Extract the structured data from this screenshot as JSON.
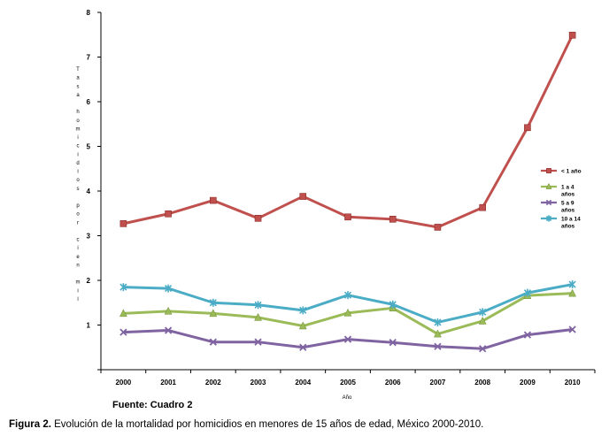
{
  "chart_data": {
    "type": "line",
    "xlabel": "Año",
    "ylabel": "Tasa homicidios por cien mil",
    "ylim": [
      0,
      8
    ],
    "yticks": [
      "1",
      "2",
      "3",
      "4",
      "5",
      "6",
      "7",
      "8"
    ],
    "x": [
      "2000",
      "2001",
      "2002",
      "2003",
      "2004",
      "2005",
      "2006",
      "2007",
      "2008",
      "2009",
      "2010"
    ],
    "grid": false,
    "legend_position": "right",
    "series": [
      {
        "name": "< 1 año",
        "color": "#C0504D",
        "marker": "square",
        "values": [
          3.27,
          3.49,
          3.79,
          3.39,
          3.88,
          3.42,
          3.37,
          3.19,
          3.63,
          5.42,
          7.49
        ]
      },
      {
        "name": "1 a 4 años",
        "color": "#9BBB59",
        "marker": "triangle",
        "values": [
          1.26,
          1.31,
          1.26,
          1.17,
          0.98,
          1.27,
          1.38,
          0.8,
          1.09,
          1.66,
          1.71
        ]
      },
      {
        "name": "5 a 9 años",
        "color": "#8064A2",
        "marker": "x",
        "values": [
          0.84,
          0.88,
          0.62,
          0.62,
          0.5,
          0.68,
          0.61,
          0.52,
          0.47,
          0.78,
          0.9
        ]
      },
      {
        "name": "10 a 14 años",
        "color": "#4BACC6",
        "marker": "star",
        "values": [
          1.85,
          1.82,
          1.5,
          1.45,
          1.33,
          1.67,
          1.46,
          1.06,
          1.29,
          1.72,
          1.91
        ]
      }
    ]
  },
  "source": "Fuente:  Cuadro 2",
  "caption": {
    "lead": "Figura 2.",
    "text": " Evolución de la mortalidad por homicidios en menores de 15 años de edad, México 2000-2010."
  }
}
